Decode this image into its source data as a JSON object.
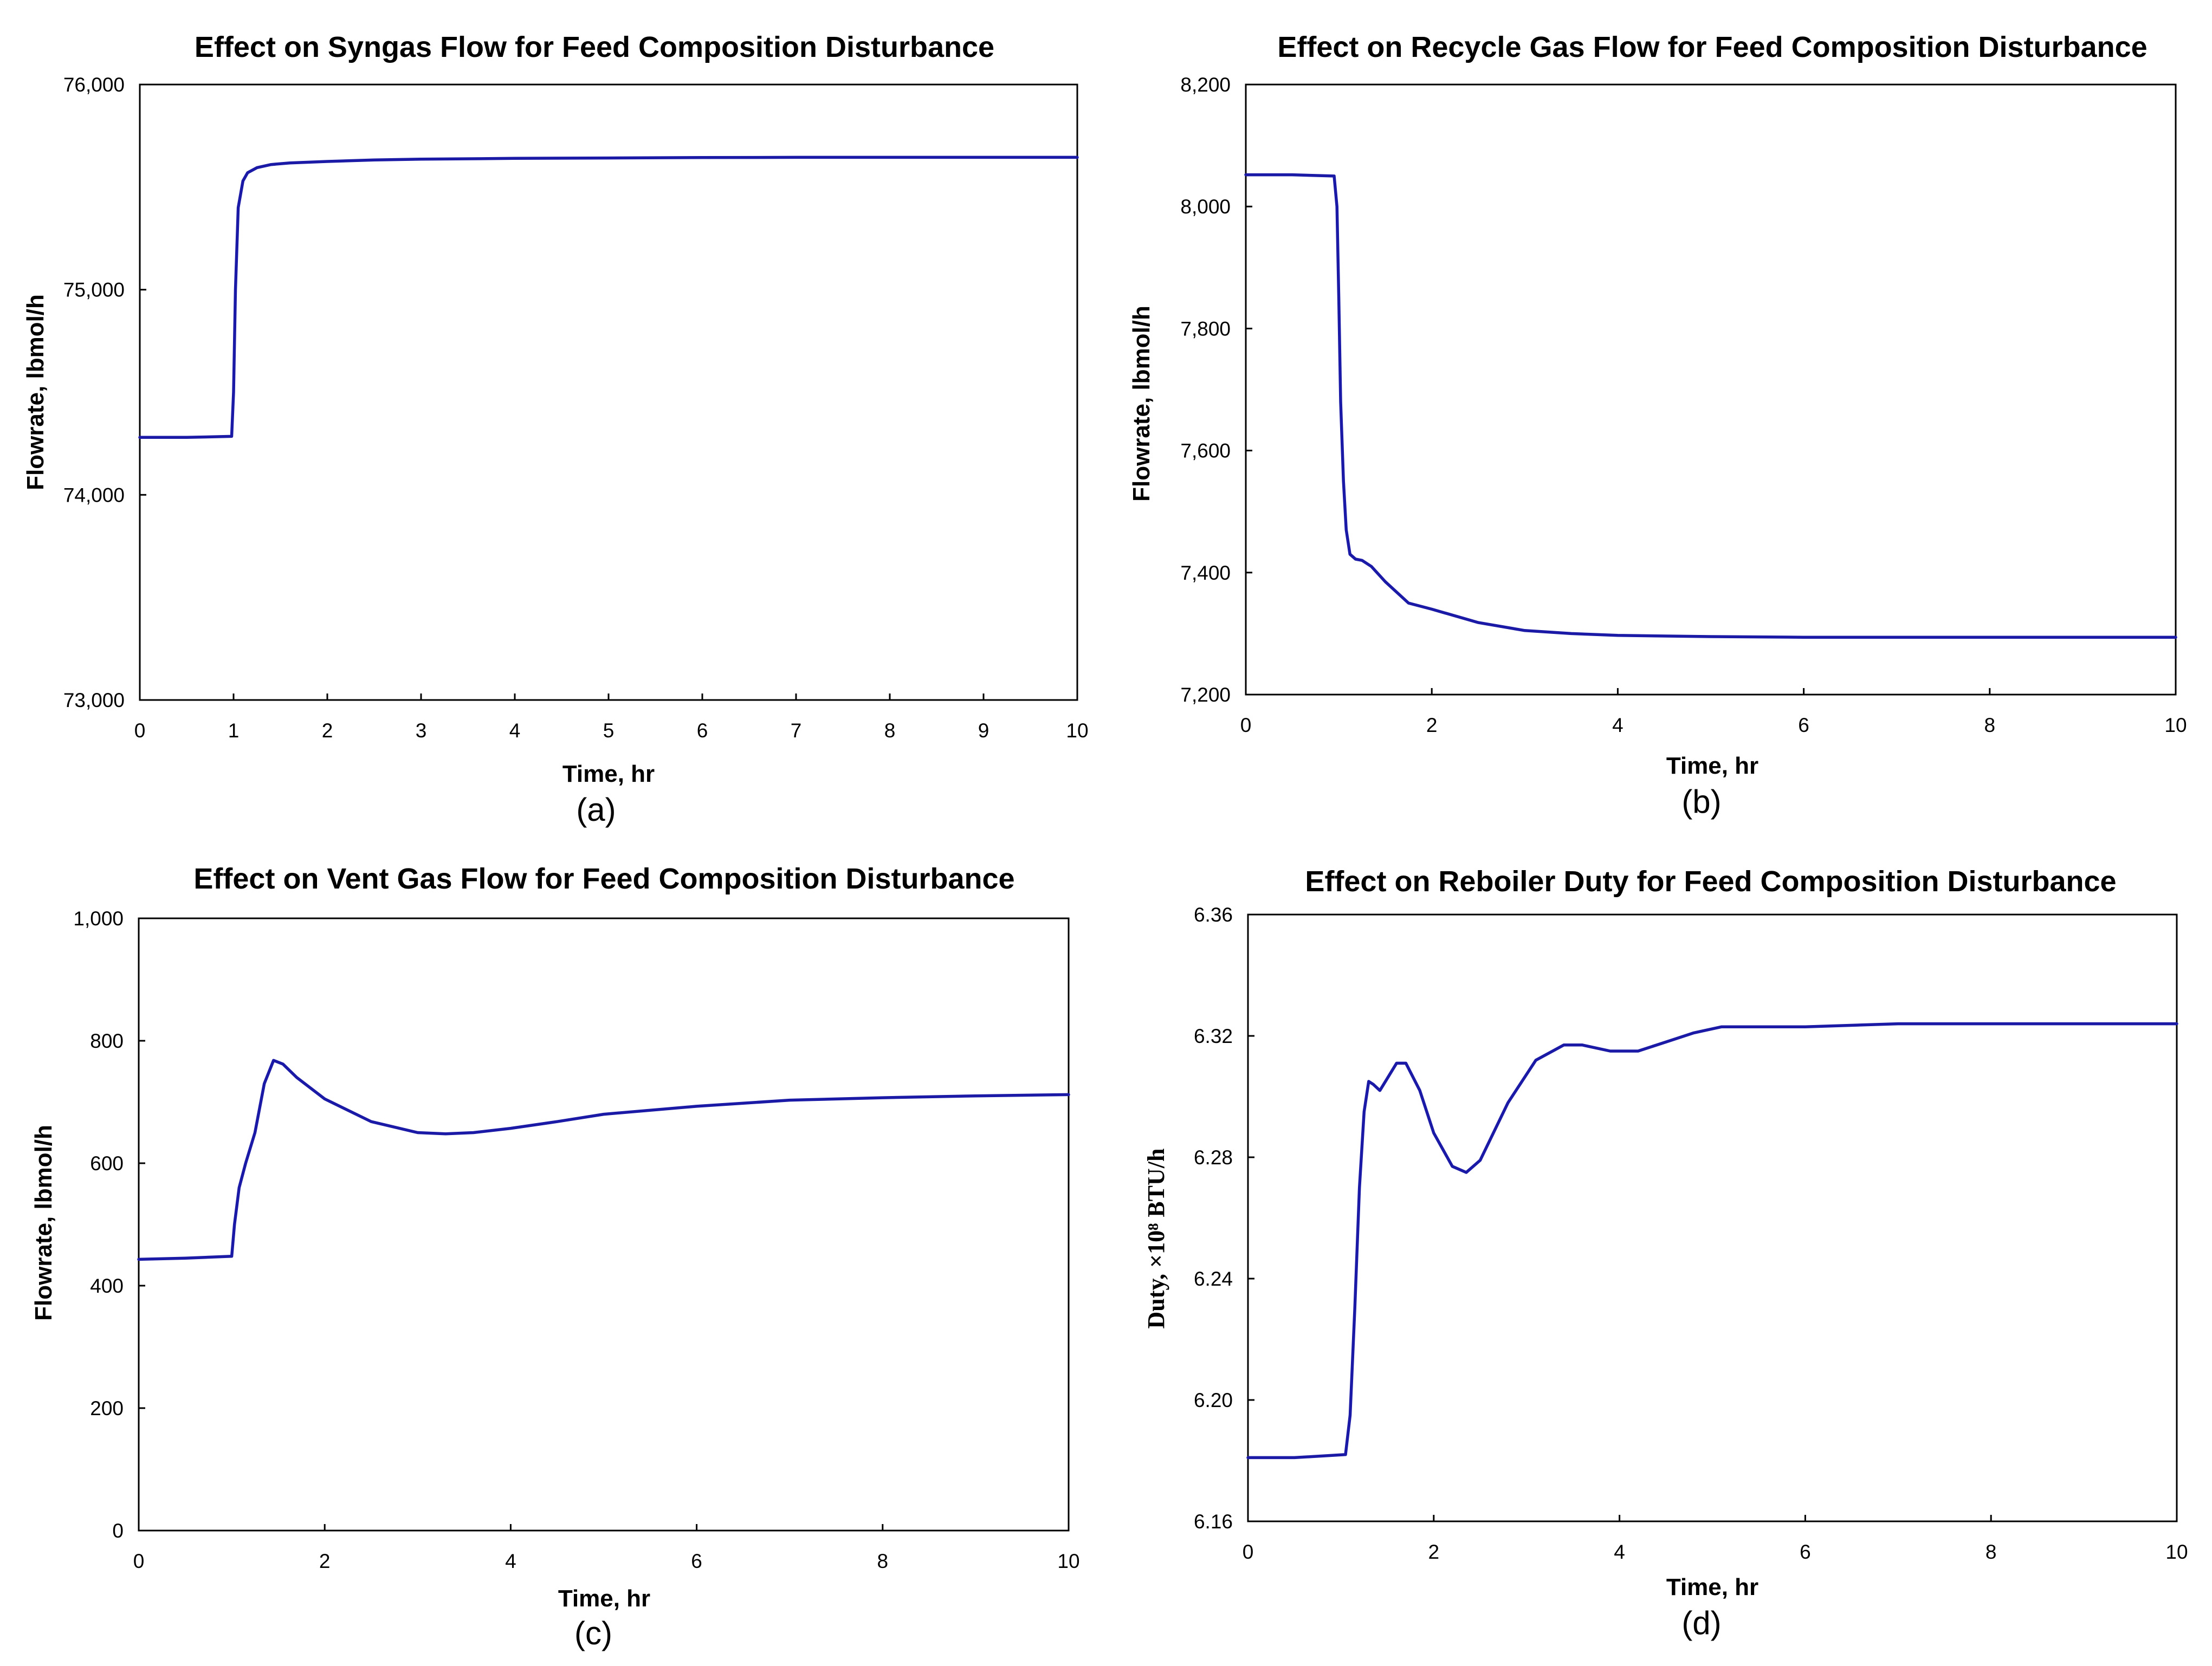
{
  "chart_data": [
    {
      "id": "a",
      "type": "line",
      "title": "Effect on Syngas Flow for Feed Composition Disturbance",
      "xlabel": "Time, hr",
      "ylabel": "Flowrate, lbmol/h",
      "sublabel": "(a)",
      "xlim": [
        0,
        10
      ],
      "ylim": [
        73000,
        76000
      ],
      "xticks": [
        0,
        1,
        2,
        3,
        4,
        5,
        6,
        7,
        8,
        9,
        10
      ],
      "xtick_labels": [
        "0",
        "1",
        "2",
        "3",
        "4",
        "5",
        "6",
        "7",
        "8",
        "9",
        "10"
      ],
      "yticks": [
        73000,
        74000,
        75000,
        76000
      ],
      "ytick_labels": [
        "73,000",
        "74,000",
        "75,000",
        "76,000"
      ],
      "grid": false,
      "series": [
        {
          "name": "Syngas flow",
          "x": [
            0,
            0.5,
            0.98,
            1.0,
            1.02,
            1.05,
            1.1,
            1.15,
            1.25,
            1.4,
            1.6,
            2.0,
            2.5,
            3.0,
            4.0,
            5.0,
            6.0,
            7.0,
            8.0,
            9.0,
            10.0
          ],
          "y": [
            74280,
            74280,
            74285,
            74500,
            75000,
            75400,
            75530,
            75570,
            75595,
            75610,
            75618,
            75625,
            75632,
            75636,
            75640,
            75642,
            75644,
            75645,
            75645,
            75645,
            75645
          ]
        }
      ]
    },
    {
      "id": "b",
      "type": "line",
      "title": "Effect on Recycle Gas Flow for Feed Composition Disturbance",
      "xlabel": "Time, hr",
      "ylabel": "Flowrate, lbmol/h",
      "sublabel": "(b)",
      "xlim": [
        0,
        10
      ],
      "ylim": [
        7200,
        8200
      ],
      "xticks": [
        0,
        2,
        4,
        6,
        8,
        10
      ],
      "xtick_labels": [
        "0",
        "2",
        "4",
        "6",
        "8",
        "10"
      ],
      "yticks": [
        7200,
        7400,
        7600,
        7800,
        8000,
        8200
      ],
      "ytick_labels": [
        "7,200",
        "7,400",
        "7,600",
        "7,800",
        "8,000",
        "8,200"
      ],
      "grid": false,
      "series": [
        {
          "name": "Recycle gas flow",
          "x": [
            0,
            0.5,
            0.95,
            0.98,
            1.0,
            1.02,
            1.05,
            1.08,
            1.12,
            1.18,
            1.25,
            1.35,
            1.5,
            1.75,
            2.0,
            2.5,
            3.0,
            3.5,
            4.0,
            5.0,
            6.0,
            7.0,
            8.0,
            9.0,
            10.0
          ],
          "y": [
            8052,
            8052,
            8050,
            8000,
            7850,
            7680,
            7550,
            7470,
            7430,
            7422,
            7420,
            7410,
            7385,
            7350,
            7340,
            7318,
            7305,
            7300,
            7297,
            7295,
            7294,
            7294,
            7294,
            7294,
            7294
          ]
        }
      ]
    },
    {
      "id": "c",
      "type": "line",
      "title": "Effect on Vent Gas Flow for Feed Composition Disturbance",
      "xlabel": "Time, hr",
      "ylabel": "Flowrate, lbmol/h",
      "sublabel": "(c)",
      "xlim": [
        0,
        10
      ],
      "ylim": [
        0,
        1000
      ],
      "xticks": [
        0,
        2,
        4,
        6,
        8,
        10
      ],
      "xtick_labels": [
        "0",
        "2",
        "4",
        "6",
        "8",
        "10"
      ],
      "yticks": [
        0,
        200,
        400,
        600,
        800,
        1000
      ],
      "ytick_labels": [
        "0",
        "200",
        "400",
        "600",
        "800",
        "1,000"
      ],
      "grid": false,
      "series": [
        {
          "name": "Vent gas flow",
          "x": [
            0,
            0.5,
            1.0,
            1.03,
            1.08,
            1.15,
            1.25,
            1.35,
            1.45,
            1.55,
            1.7,
            2.0,
            2.5,
            3.0,
            3.3,
            3.6,
            4.0,
            4.5,
            5.0,
            6.0,
            7.0,
            8.0,
            9.0,
            10.0
          ],
          "y": [
            443,
            445,
            448,
            500,
            560,
            600,
            650,
            730,
            768,
            762,
            740,
            705,
            668,
            650,
            648,
            650,
            657,
            668,
            680,
            693,
            703,
            707,
            710,
            712
          ]
        }
      ]
    },
    {
      "id": "d",
      "type": "line",
      "title": "Effect on Reboiler Duty for Feed Composition Disturbance",
      "xlabel": "Time, hr",
      "ylabel": "Duty, ×10⁸ BTU/h",
      "sublabel": "(d)",
      "xlim": [
        0,
        10
      ],
      "ylim": [
        6.16,
        6.36
      ],
      "xticks": [
        0,
        2,
        4,
        6,
        8,
        10
      ],
      "xtick_labels": [
        "0",
        "2",
        "4",
        "6",
        "8",
        "10"
      ],
      "yticks": [
        6.16,
        6.2,
        6.24,
        6.28,
        6.32,
        6.36
      ],
      "ytick_labels": [
        "6.16",
        "6.20",
        "6.24",
        "6.28",
        "6.32",
        "6.36"
      ],
      "grid": false,
      "series": [
        {
          "name": "Reboiler duty",
          "x": [
            0,
            0.5,
            1.05,
            1.1,
            1.15,
            1.2,
            1.25,
            1.3,
            1.35,
            1.42,
            1.5,
            1.6,
            1.7,
            1.85,
            2.0,
            2.2,
            2.35,
            2.5,
            2.8,
            3.1,
            3.4,
            3.6,
            3.9,
            4.2,
            4.5,
            4.8,
            5.1,
            5.5,
            6.0,
            7.0,
            8.0,
            9.0,
            10.0
          ],
          "y": [
            6.181,
            6.181,
            6.182,
            6.195,
            6.23,
            6.27,
            6.295,
            6.305,
            6.304,
            6.302,
            6.306,
            6.311,
            6.311,
            6.302,
            6.288,
            6.277,
            6.275,
            6.279,
            6.298,
            6.312,
            6.317,
            6.317,
            6.315,
            6.315,
            6.318,
            6.321,
            6.323,
            6.323,
            6.323,
            6.324,
            6.324,
            6.324,
            6.324
          ]
        }
      ]
    }
  ],
  "colors": {
    "line": "#1a1aa6",
    "axes": "#000000",
    "background": "#ffffff"
  }
}
